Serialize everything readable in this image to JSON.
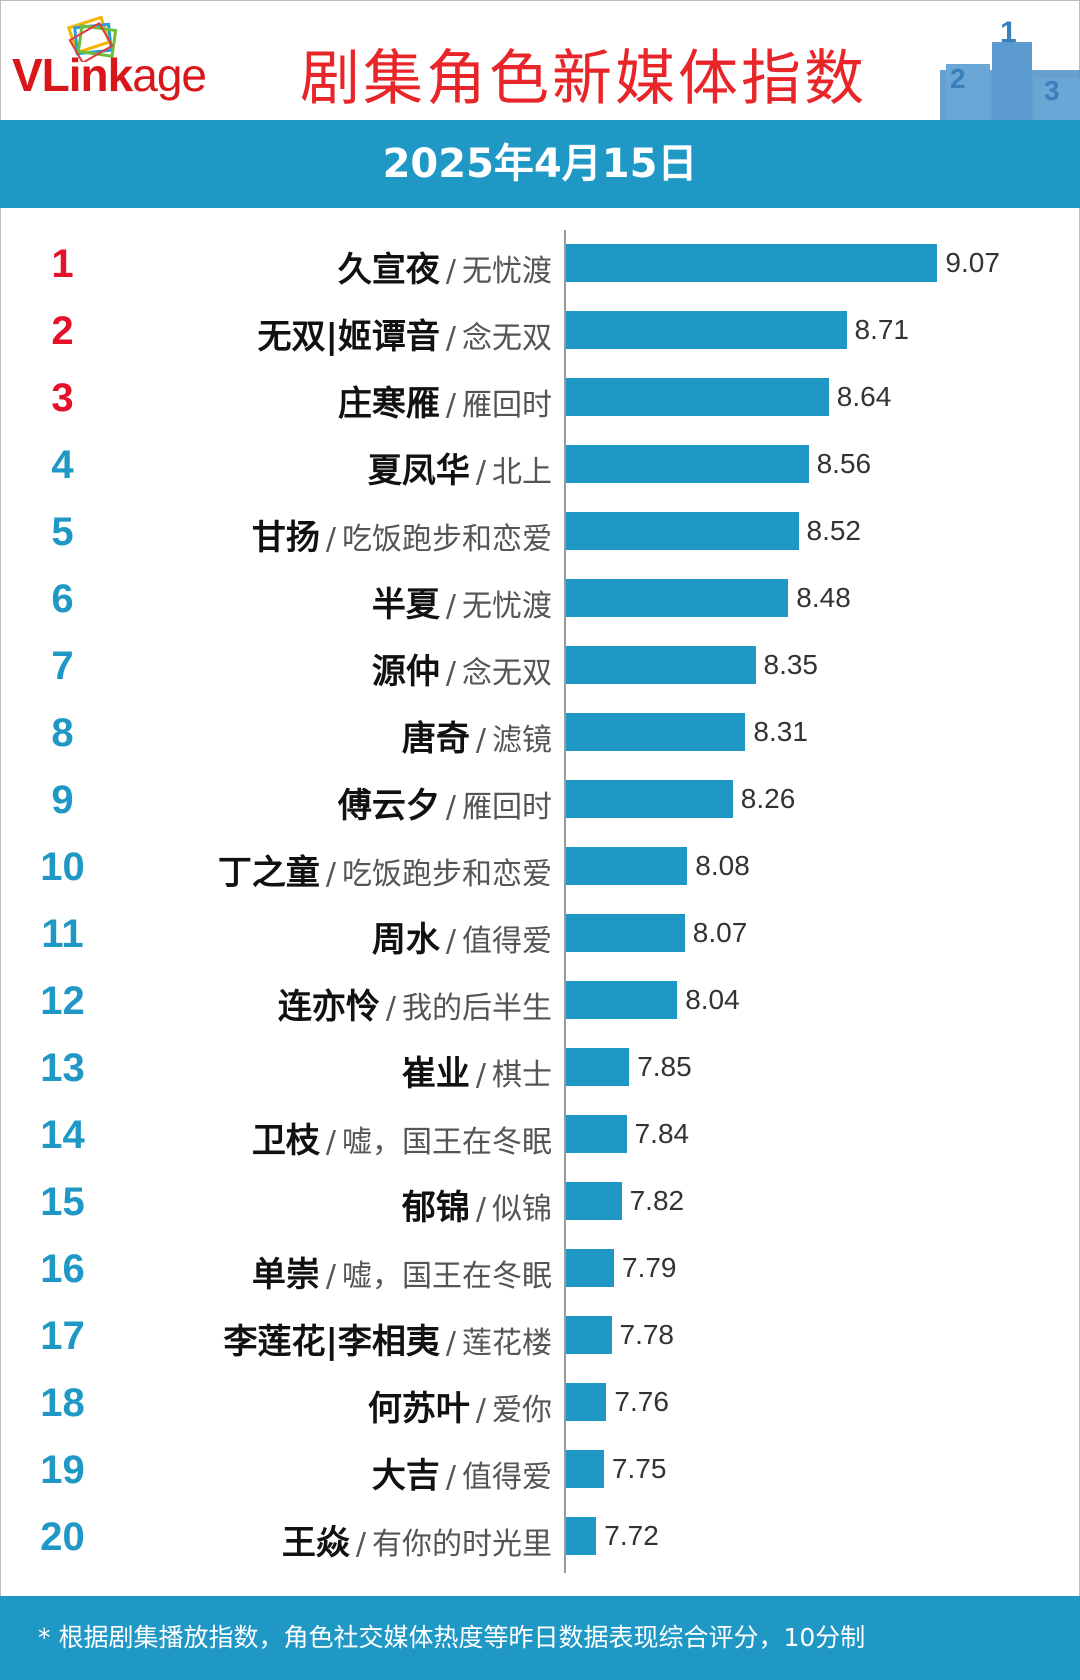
{
  "header": {
    "logo_text_a": "VLink",
    "logo_text_b": "age",
    "title": "剧集角色新媒体指数"
  },
  "date": "2025年4月15日",
  "colors": {
    "bar": "#1f98c6",
    "top_rank": "#e3122a",
    "rank": "#1f98c6",
    "title": "#e8262a"
  },
  "chart_data": {
    "type": "bar",
    "orientation": "horizontal",
    "title": "剧集角色新媒体指数",
    "categories": [
      {
        "rank": "1",
        "name": "久宣夜",
        "drama": "无忧渡"
      },
      {
        "rank": "2",
        "name": "无双|姬谭音",
        "drama": "念无双"
      },
      {
        "rank": "3",
        "name": "庄寒雁",
        "drama": "雁回时"
      },
      {
        "rank": "4",
        "name": "夏凤华",
        "drama": "北上"
      },
      {
        "rank": "5",
        "name": "甘扬",
        "drama": "吃饭跑步和恋爱"
      },
      {
        "rank": "6",
        "name": "半夏",
        "drama": "无忧渡"
      },
      {
        "rank": "7",
        "name": "源仲",
        "drama": "念无双"
      },
      {
        "rank": "8",
        "name": "唐奇",
        "drama": "滤镜"
      },
      {
        "rank": "9",
        "name": "傅云夕",
        "drama": "雁回时"
      },
      {
        "rank": "10",
        "name": "丁之童",
        "drama": "吃饭跑步和恋爱"
      },
      {
        "rank": "11",
        "name": "周水",
        "drama": "值得爱"
      },
      {
        "rank": "12",
        "name": "连亦怜",
        "drama": "我的后半生"
      },
      {
        "rank": "13",
        "name": "崔业",
        "drama": "棋士"
      },
      {
        "rank": "14",
        "name": "卫枝",
        "drama": "嘘，国王在冬眠"
      },
      {
        "rank": "15",
        "name": "郁锦",
        "drama": "似锦"
      },
      {
        "rank": "16",
        "name": "单崇",
        "drama": "嘘，国王在冬眠"
      },
      {
        "rank": "17",
        "name": "李莲花|李相夷",
        "drama": "莲花楼"
      },
      {
        "rank": "18",
        "name": "何苏叶",
        "drama": "爱你"
      },
      {
        "rank": "19",
        "name": "大吉",
        "drama": "值得爱"
      },
      {
        "rank": "20",
        "name": "王焱",
        "drama": "有你的时光里"
      }
    ],
    "values": [
      9.07,
      8.71,
      8.64,
      8.56,
      8.52,
      8.48,
      8.35,
      8.31,
      8.26,
      8.08,
      8.07,
      8.04,
      7.85,
      7.84,
      7.82,
      7.79,
      7.78,
      7.76,
      7.75,
      7.72
    ],
    "value_labels": [
      "9.07",
      "8.71",
      "8.64",
      "8.56",
      "8.52",
      "8.48",
      "8.35",
      "8.31",
      "8.26",
      "8.08",
      "8.07",
      "8.04",
      "7.85",
      "7.84",
      "7.82",
      "7.79",
      "7.78",
      "7.76",
      "7.75",
      "7.72"
    ],
    "xlim": [
      7.6,
      9.1
    ],
    "grid": false,
    "legend": "none"
  },
  "footer": {
    "note": "* 根据剧集播放指数，角色社交媒体热度等昨日数据表现综合评分，10分制"
  }
}
